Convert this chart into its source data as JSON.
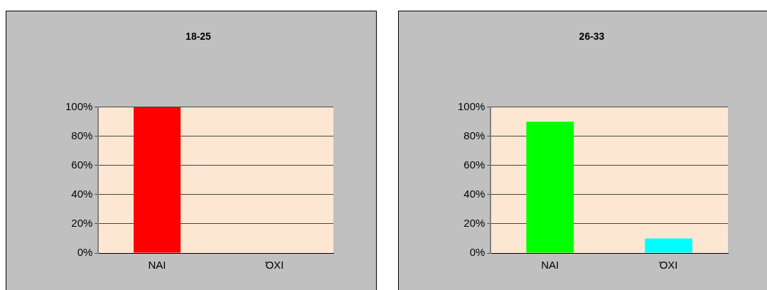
{
  "chart_data": [
    {
      "type": "bar",
      "title": "18-25",
      "categories": [
        "ΝΑΙ",
        "ΌΧΙ"
      ],
      "values": [
        100,
        0
      ],
      "colors": [
        "#ff0000",
        "#c0c000"
      ],
      "ylim": [
        0,
        100
      ],
      "yticks": [
        {
          "value": 0,
          "label": "0%"
        },
        {
          "value": 20,
          "label": "20%"
        },
        {
          "value": 40,
          "label": "40%"
        },
        {
          "value": 60,
          "label": "60%"
        },
        {
          "value": 80,
          "label": "80%"
        },
        {
          "value": 100,
          "label": "100%"
        }
      ],
      "grid": "y",
      "legend": false
    },
    {
      "type": "bar",
      "title": "26-33",
      "categories": [
        "ΝΑΙ",
        "ΌΧΙ"
      ],
      "values": [
        90,
        10
      ],
      "colors": [
        "#00ff00",
        "#00ffff"
      ],
      "ylim": [
        0,
        100
      ],
      "yticks": [
        {
          "value": 0,
          "label": "0%"
        },
        {
          "value": 20,
          "label": "20%"
        },
        {
          "value": 40,
          "label": "40%"
        },
        {
          "value": 60,
          "label": "60%"
        },
        {
          "value": 80,
          "label": "80%"
        },
        {
          "value": 100,
          "label": "100%"
        }
      ],
      "grid": "y",
      "legend": false
    }
  ]
}
